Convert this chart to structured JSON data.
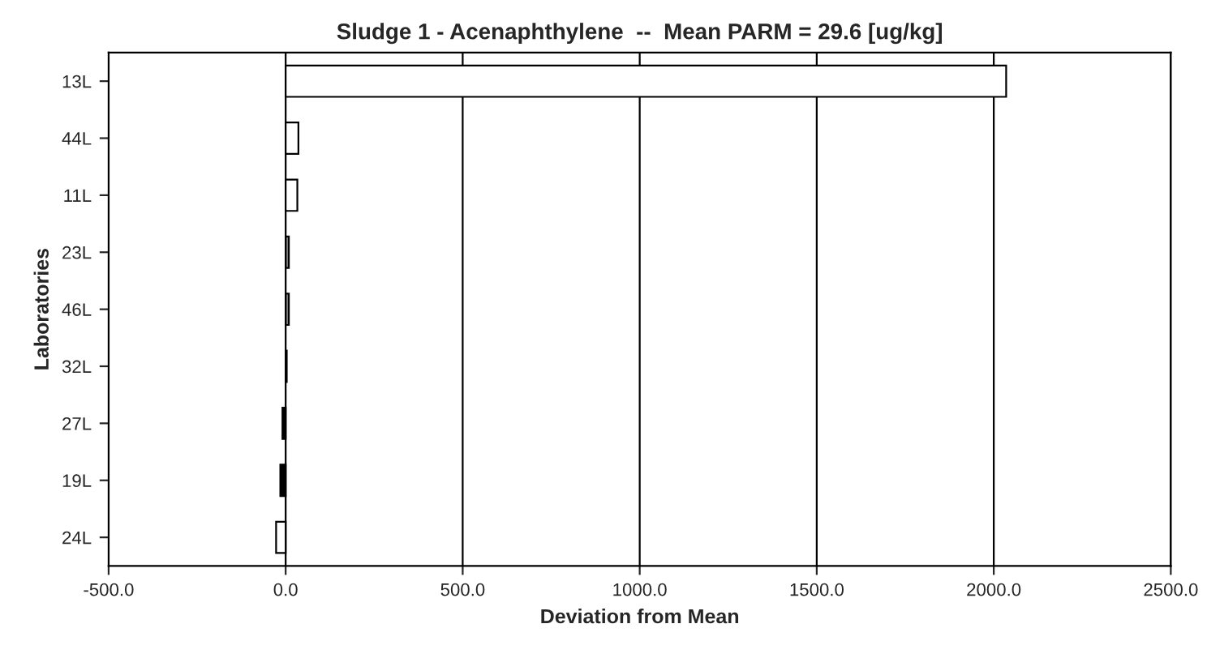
{
  "chart_data": {
    "type": "bar",
    "orientation": "horizontal",
    "title": "Sludge 1 - Acenaphthylene  --  Mean PARM = 29.6 [ug/kg]",
    "xlabel": "Deviation from Mean",
    "ylabel": "Laboratories",
    "categories": [
      "13L",
      "44L",
      "11L",
      "23L",
      "46L",
      "32L",
      "27L",
      "19L",
      "24L"
    ],
    "values": [
      2035,
      36,
      33,
      9,
      9,
      3,
      -9,
      -15,
      -27
    ],
    "colors": [
      "#ffffff",
      "#ffffff",
      "#ffffff",
      "#808080",
      "#808080",
      "#808080",
      "#000000",
      "#000000",
      "#ffffff"
    ],
    "xlim": [
      -500,
      2500
    ],
    "xticks": [
      {
        "value": -500,
        "label": "-500.0"
      },
      {
        "value": 0,
        "label": "0.0"
      },
      {
        "value": 500,
        "label": "500.0"
      },
      {
        "value": 1000,
        "label": "1000.0"
      },
      {
        "value": 1500,
        "label": "1500.0"
      },
      {
        "value": 2000,
        "label": "2000.0"
      },
      {
        "value": 2500,
        "label": "2500.0"
      }
    ],
    "grid": "x",
    "legend": false
  }
}
